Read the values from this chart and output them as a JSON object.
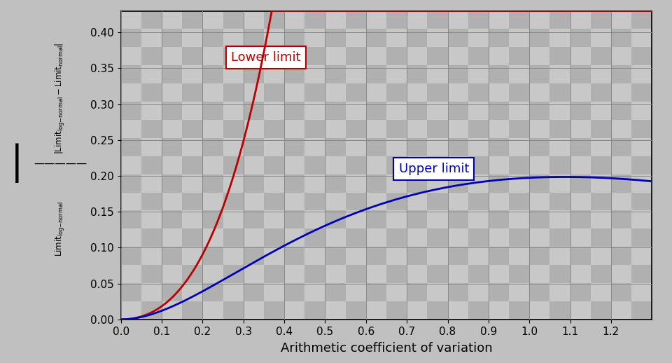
{
  "xlabel": "Arithmetic coefficient of variation",
  "red_label": "Lower limit",
  "blue_label": "Upper limit",
  "xlim": [
    0,
    1.3
  ],
  "ylim": [
    0,
    0.43
  ],
  "xticks": [
    0.0,
    0.1,
    0.2,
    0.3,
    0.4,
    0.5,
    0.6,
    0.7,
    0.8,
    0.9,
    1.0,
    1.1,
    1.2
  ],
  "yticks": [
    0.0,
    0.05,
    0.1,
    0.15,
    0.2,
    0.25,
    0.3,
    0.35,
    0.4
  ],
  "red_color": "#bb0000",
  "blue_color": "#0000bb",
  "checkerboard_light": "#c8c8c8",
  "checkerboard_dark": "#b0b0b0",
  "grid_color": "#888888",
  "line_width": 2.0,
  "annotation_fontsize": 13,
  "tick_fontsize": 11,
  "xlabel_fontsize": 13
}
